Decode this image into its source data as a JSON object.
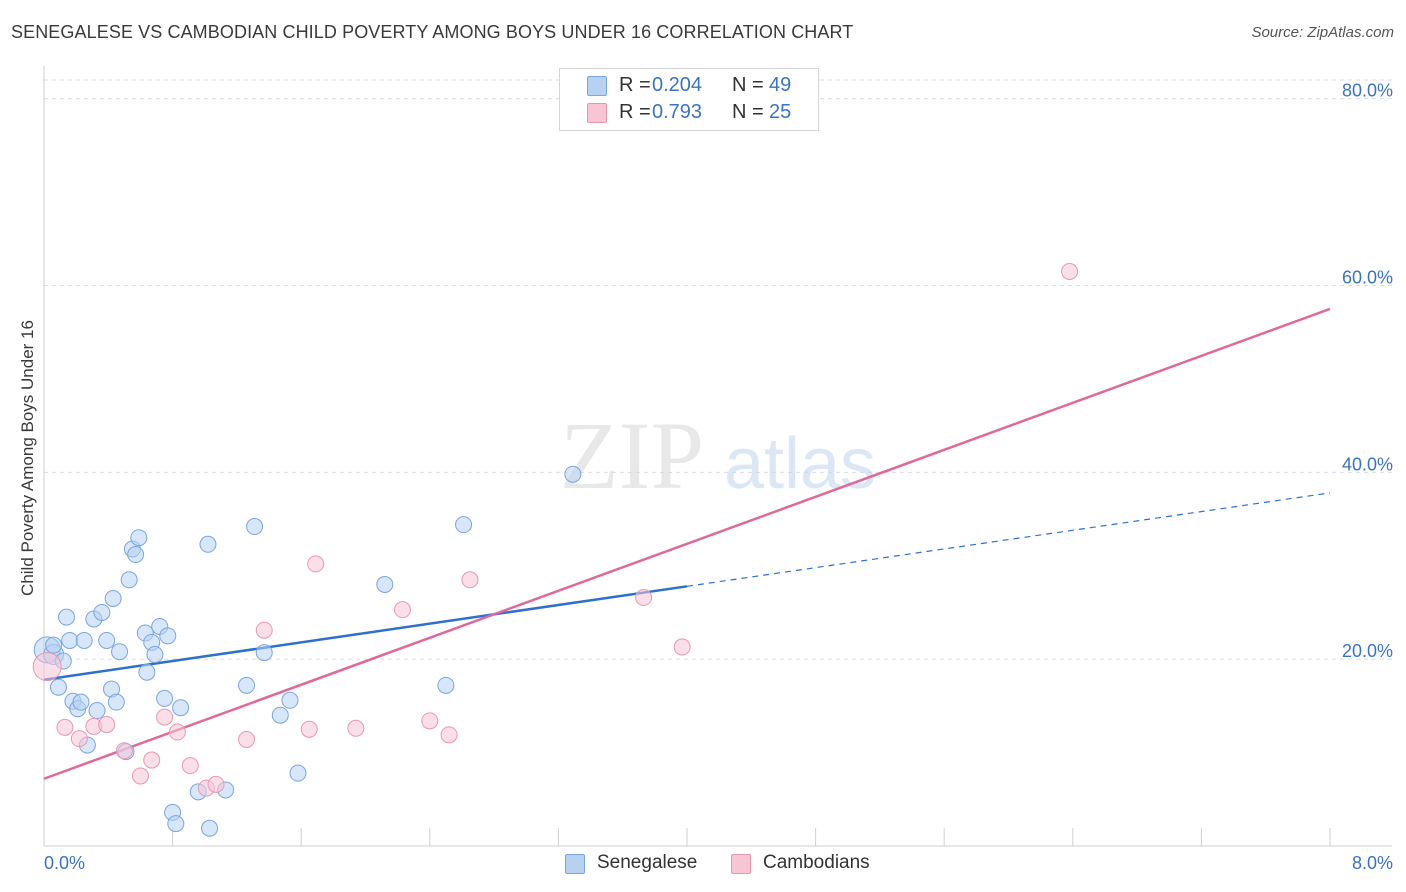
{
  "title": "SENEGALESE VS CAMBODIAN CHILD POVERTY AMONG BOYS UNDER 16 CORRELATION CHART",
  "source": "Source: ZipAtlas.com",
  "watermark": {
    "zip": "ZIP",
    "atlas": "atlas"
  },
  "legend": {
    "rows": [
      {
        "r_label": "R =",
        "r_value": "0.204",
        "n_label": "N =",
        "n_value": "49"
      },
      {
        "r_label": "R =",
        "r_value": "0.793",
        "n_label": "N =",
        "n_value": "25"
      }
    ]
  },
  "bottom_legend": {
    "senegalese": "Senegalese",
    "cambodians": "Cambodians"
  },
  "chart_data": {
    "type": "scatter",
    "title": "SENEGALESE VS CAMBODIAN CHILD POVERTY AMONG BOYS UNDER 16 CORRELATION CHART",
    "xlabel": "",
    "ylabel": "Child Poverty Among Boys Under 16",
    "xlim": [
      0,
      8
    ],
    "ylim": [
      0,
      80
    ],
    "x_tick_labels": [
      {
        "value": 0,
        "label": "0.0%"
      },
      {
        "value": 8,
        "label": "8.0%"
      }
    ],
    "y_tick_labels": [
      {
        "value": 20,
        "label": "20.0%"
      },
      {
        "value": 40,
        "label": "40.0%"
      },
      {
        "value": 60,
        "label": "60.0%"
      },
      {
        "value": 80,
        "label": "80.0%"
      }
    ],
    "y_gridlines": [
      20,
      40,
      60,
      80,
      82
    ],
    "x_minor_ticks": [
      0.8,
      1.6,
      2.4,
      3.2,
      4.0,
      4.8,
      5.6,
      6.4,
      7.2,
      8.0
    ],
    "colors": {
      "senegalese_fill": "#b7d1f2",
      "senegalese_stroke": "#7aa6dd",
      "senegalese_line": "#2f6fcf",
      "cambodians_fill": "#f8c5d5",
      "cambodians_stroke": "#e997b1",
      "cambodians_line": "#e0699a",
      "axis_label": "#3b73c4"
    },
    "series": [
      {
        "name": "Senegalese",
        "r": 0.204,
        "n": 49,
        "trend": {
          "x0": 0,
          "y0": 17.8,
          "x1": 4.0,
          "y1": 27.8,
          "dash_x_end": 8.0,
          "dash_y_end": 37.8
        },
        "points": [
          [
            0.02,
            21.0,
            13
          ],
          [
            0.06,
            20.5,
            10
          ],
          [
            0.09,
            17.0,
            8
          ],
          [
            0.12,
            19.8,
            8
          ],
          [
            0.14,
            24.5,
            8
          ],
          [
            0.16,
            22.0,
            8
          ],
          [
            0.18,
            15.5,
            8
          ],
          [
            0.21,
            14.7,
            8
          ],
          [
            0.23,
            15.4,
            8
          ],
          [
            0.25,
            22.0,
            8
          ],
          [
            0.27,
            10.8,
            8
          ],
          [
            0.31,
            24.3,
            8
          ],
          [
            0.33,
            14.5,
            8
          ],
          [
            0.36,
            25.0,
            8
          ],
          [
            0.39,
            22.0,
            8
          ],
          [
            0.42,
            16.8,
            8
          ],
          [
            0.43,
            26.5,
            8
          ],
          [
            0.45,
            15.4,
            8
          ],
          [
            0.47,
            20.8,
            8
          ],
          [
            0.51,
            10.1,
            8
          ],
          [
            0.53,
            28.5,
            8
          ],
          [
            0.55,
            31.8,
            8
          ],
          [
            0.57,
            31.2,
            8
          ],
          [
            0.59,
            33.0,
            8
          ],
          [
            0.63,
            22.8,
            8
          ],
          [
            0.64,
            18.6,
            8
          ],
          [
            0.67,
            21.8,
            8
          ],
          [
            0.69,
            20.5,
            8
          ],
          [
            0.72,
            23.5,
            8
          ],
          [
            0.75,
            15.8,
            8
          ],
          [
            0.77,
            22.5,
            8
          ],
          [
            0.8,
            3.6,
            8
          ],
          [
            0.82,
            2.4,
            8
          ],
          [
            0.85,
            14.8,
            8
          ],
          [
            0.96,
            5.8,
            8
          ],
          [
            1.02,
            32.3,
            8
          ],
          [
            1.03,
            1.9,
            8
          ],
          [
            1.13,
            6.0,
            8
          ],
          [
            1.26,
            17.2,
            8
          ],
          [
            1.31,
            34.2,
            8
          ],
          [
            1.37,
            20.7,
            8
          ],
          [
            1.47,
            14.0,
            8
          ],
          [
            1.53,
            15.6,
            8
          ],
          [
            1.58,
            7.8,
            8
          ],
          [
            2.12,
            28.0,
            8
          ],
          [
            2.5,
            17.2,
            8
          ],
          [
            2.61,
            34.4,
            8
          ],
          [
            3.29,
            39.8,
            8
          ],
          [
            0.06,
            21.5,
            8
          ]
        ]
      },
      {
        "name": "Cambodians",
        "r": 0.793,
        "n": 25,
        "trend": {
          "x0": 0,
          "y0": 7.2,
          "x1": 8.0,
          "y1": 57.5
        },
        "points": [
          [
            0.02,
            19.2,
            14
          ],
          [
            0.13,
            12.7,
            8
          ],
          [
            0.22,
            11.5,
            8
          ],
          [
            0.31,
            12.8,
            8
          ],
          [
            0.39,
            13.0,
            8
          ],
          [
            0.5,
            10.2,
            8
          ],
          [
            0.6,
            7.5,
            8
          ],
          [
            0.67,
            9.2,
            8
          ],
          [
            0.75,
            13.8,
            8
          ],
          [
            0.83,
            12.2,
            8
          ],
          [
            0.91,
            8.6,
            8
          ],
          [
            1.01,
            6.2,
            8
          ],
          [
            1.07,
            6.6,
            8
          ],
          [
            1.26,
            11.4,
            8
          ],
          [
            1.37,
            23.1,
            8
          ],
          [
            1.65,
            12.5,
            8
          ],
          [
            1.69,
            30.2,
            8
          ],
          [
            1.94,
            12.6,
            8
          ],
          [
            2.23,
            25.3,
            8
          ],
          [
            2.4,
            13.4,
            8
          ],
          [
            2.52,
            11.9,
            8
          ],
          [
            2.65,
            28.5,
            8
          ],
          [
            3.73,
            26.6,
            8
          ],
          [
            3.97,
            21.3,
            8
          ],
          [
            6.38,
            61.5,
            8
          ]
        ]
      }
    ]
  }
}
